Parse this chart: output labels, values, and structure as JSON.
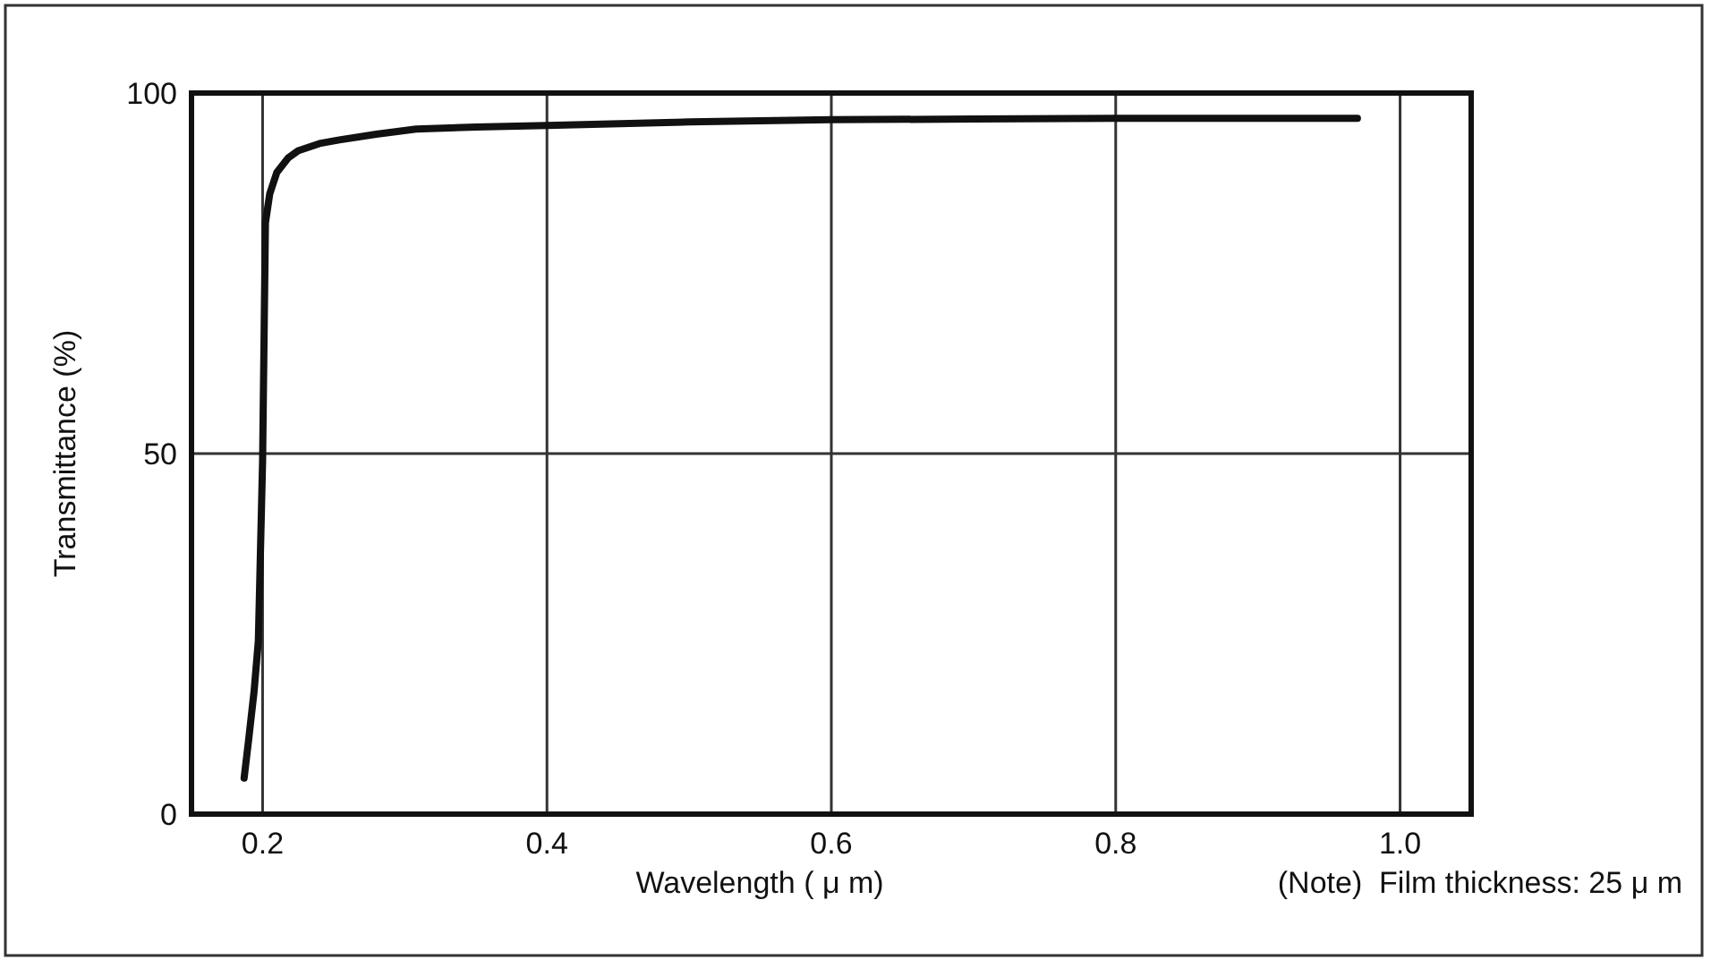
{
  "chart_data": {
    "type": "line",
    "xlabel": "Wavelength ( μ m)",
    "ylabel": "Transmittance (%)",
    "annotations": [
      "(Note)  Film thickness: 25 μ m"
    ],
    "xlim": [
      0.15,
      1.05
    ],
    "xticks": [
      0.2,
      0.4,
      0.6,
      0.8,
      {
        "value": 1,
        "label": "1.0"
      }
    ],
    "ylim": [
      0,
      100
    ],
    "yticks": [
      0,
      50,
      100
    ],
    "grid": true,
    "line_style": "solid",
    "marker": "none",
    "x": [
      0.187,
      0.19,
      0.194,
      0.197,
      0.2,
      0.202,
      0.205,
      0.21,
      0.218,
      0.225,
      0.24,
      0.254,
      0.28,
      0.308,
      0.35,
      0.4,
      0.5,
      0.6,
      0.7,
      0.8,
      0.9,
      0.97
    ],
    "series": [
      {
        "color": "#111111",
        "values": [
          5,
          10,
          17,
          24,
          49,
          82,
          86,
          89,
          91,
          92,
          93,
          93.5,
          94.3,
          95,
          95.3,
          95.5,
          96,
          96.3,
          96.4,
          96.5,
          96.5,
          96.5
        ]
      }
    ]
  }
}
